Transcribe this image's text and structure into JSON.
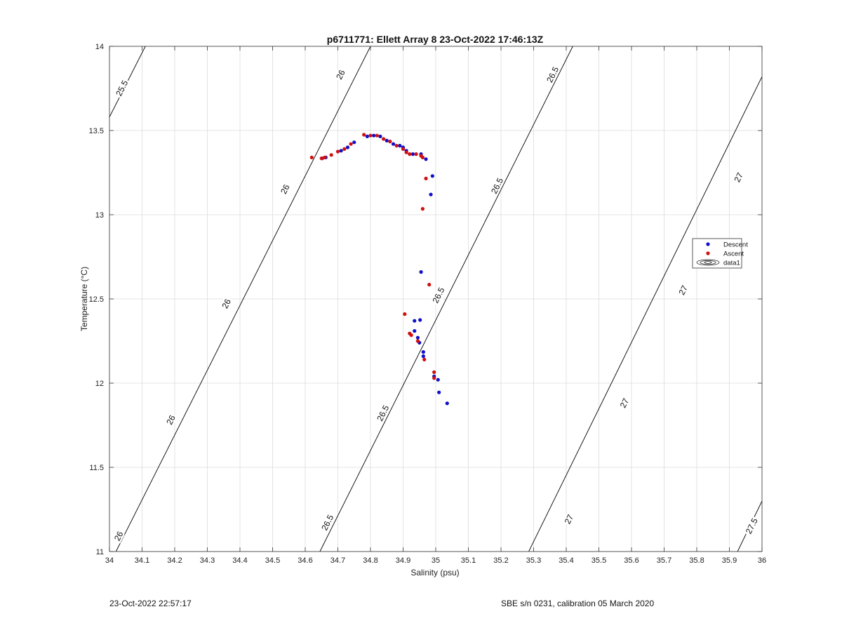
{
  "chart_data": {
    "type": "scatter",
    "title": "p6711771: Ellett Array 8 23-Oct-2022 17:46:13Z",
    "xlabel": "Salinity (psu)",
    "ylabel": "Temperature (°C)",
    "xlim": [
      34,
      36
    ],
    "ylim": [
      11,
      14
    ],
    "x_ticks": [
      34,
      34.1,
      34.2,
      34.3,
      34.4,
      34.5,
      34.6,
      34.7,
      34.8,
      34.9,
      35,
      35.1,
      35.2,
      35.3,
      35.4,
      35.5,
      35.6,
      35.7,
      35.8,
      35.9,
      36
    ],
    "x_tick_labels": [
      "34",
      "34.1",
      "34.2",
      "34.3",
      "34.4",
      "34.5",
      "34.6",
      "34.7",
      "34.8",
      "34.9",
      "35",
      "35.1",
      "35.2",
      "35.3",
      "35.4",
      "35.5",
      "35.6",
      "35.7",
      "35.8",
      "35.9",
      "36"
    ],
    "y_ticks": [
      11,
      11.5,
      12,
      12.5,
      13,
      13.5,
      14
    ],
    "y_tick_labels": [
      "11",
      "11.5",
      "12",
      "12.5",
      "13",
      "13.5",
      "14"
    ],
    "grid": true,
    "legend": {
      "position": "right",
      "entries": [
        "Descent",
        "Ascent",
        "data1"
      ]
    },
    "series": [
      {
        "name": "Descent",
        "color": "#1010c8",
        "marker": "dot",
        "points": [
          [
            34.652,
            13.335
          ],
          [
            34.663,
            13.34
          ],
          [
            34.71,
            13.38
          ],
          [
            34.73,
            13.4
          ],
          [
            34.75,
            13.43
          ],
          [
            34.79,
            13.465
          ],
          [
            34.81,
            13.47
          ],
          [
            34.83,
            13.465
          ],
          [
            34.85,
            13.44
          ],
          [
            34.87,
            13.42
          ],
          [
            34.89,
            13.41
          ],
          [
            34.9,
            13.4
          ],
          [
            34.91,
            13.38
          ],
          [
            34.93,
            13.36
          ],
          [
            34.955,
            13.36
          ],
          [
            34.97,
            13.33
          ],
          [
            34.99,
            13.23
          ],
          [
            34.985,
            13.12
          ],
          [
            34.955,
            12.66
          ],
          [
            34.935,
            12.37
          ],
          [
            34.952,
            12.375
          ],
          [
            34.935,
            12.31
          ],
          [
            34.945,
            12.27
          ],
          [
            34.95,
            12.24
          ],
          [
            34.962,
            12.185
          ],
          [
            34.962,
            12.16
          ],
          [
            34.995,
            12.04
          ],
          [
            35.007,
            12.02
          ],
          [
            35.01,
            11.945
          ],
          [
            35.035,
            11.88
          ]
        ]
      },
      {
        "name": "Ascent",
        "color": "#d01010",
        "marker": "dot",
        "points": [
          [
            34.62,
            13.34
          ],
          [
            34.65,
            13.335
          ],
          [
            34.66,
            13.34
          ],
          [
            34.68,
            13.355
          ],
          [
            34.7,
            13.375
          ],
          [
            34.72,
            13.39
          ],
          [
            34.74,
            13.42
          ],
          [
            34.78,
            13.475
          ],
          [
            34.8,
            13.47
          ],
          [
            34.82,
            13.47
          ],
          [
            34.84,
            13.45
          ],
          [
            34.86,
            13.435
          ],
          [
            34.88,
            13.41
          ],
          [
            34.9,
            13.39
          ],
          [
            34.91,
            13.37
          ],
          [
            34.92,
            13.36
          ],
          [
            34.94,
            13.36
          ],
          [
            34.955,
            13.35
          ],
          [
            34.96,
            13.34
          ],
          [
            34.97,
            13.215
          ],
          [
            34.96,
            13.035
          ],
          [
            34.98,
            12.585
          ],
          [
            34.905,
            12.41
          ],
          [
            34.92,
            12.295
          ],
          [
            34.925,
            12.285
          ],
          [
            34.945,
            12.25
          ],
          [
            34.965,
            12.14
          ],
          [
            34.995,
            12.065
          ],
          [
            34.995,
            12.03
          ]
        ]
      }
    ],
    "contours": {
      "name": "data1",
      "color": "#000000",
      "lines": [
        {
          "level": "25.5",
          "points": [
            [
              34,
              13.58
            ],
            [
              34.11,
              14
            ]
          ]
        },
        {
          "level": "26",
          "points": [
            [
              34.02,
              11
            ],
            [
              34.8,
              14
            ]
          ]
        },
        {
          "level": "26.5",
          "points": [
            [
              34.645,
              11
            ],
            [
              35.42,
              14
            ]
          ]
        },
        {
          "level": "27",
          "points": [
            [
              35.285,
              11
            ],
            [
              36,
              13.82
            ]
          ]
        },
        {
          "level": "27.5",
          "points": [
            [
              35.925,
              11
            ],
            [
              36,
              11.3
            ]
          ]
        }
      ],
      "labels": [
        {
          "text": "25.5",
          "x": 34.04,
          "y": 13.75
        },
        {
          "text": "26",
          "x": 34.71,
          "y": 13.83
        },
        {
          "text": "26",
          "x": 34.54,
          "y": 13.15
        },
        {
          "text": "26",
          "x": 34.36,
          "y": 12.47
        },
        {
          "text": "26",
          "x": 34.19,
          "y": 11.78
        },
        {
          "text": "26",
          "x": 34.03,
          "y": 11.09
        },
        {
          "text": "26.5",
          "x": 35.36,
          "y": 13.83
        },
        {
          "text": "26.5",
          "x": 35.19,
          "y": 13.17
        },
        {
          "text": "26.5",
          "x": 35.01,
          "y": 12.52
        },
        {
          "text": "26.5",
          "x": 34.84,
          "y": 11.82
        },
        {
          "text": "26.5",
          "x": 34.67,
          "y": 11.17
        },
        {
          "text": "27",
          "x": 35.93,
          "y": 13.22
        },
        {
          "text": "27",
          "x": 35.76,
          "y": 12.55
        },
        {
          "text": "27",
          "x": 35.58,
          "y": 11.88
        },
        {
          "text": "27",
          "x": 35.41,
          "y": 11.19
        },
        {
          "text": "27.5",
          "x": 35.97,
          "y": 11.15
        }
      ]
    }
  },
  "footer": {
    "left": "23-Oct-2022 22:57:17",
    "right": "SBE s/n 0231, calibration 05 March 2020"
  }
}
